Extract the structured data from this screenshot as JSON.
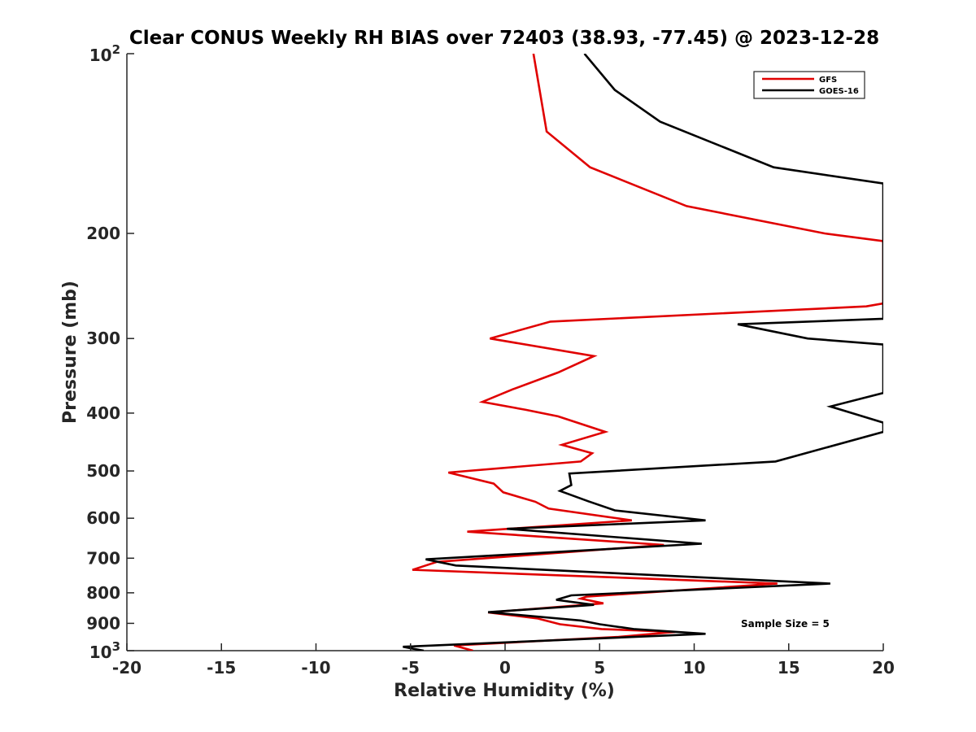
{
  "chart_data": {
    "type": "line",
    "title": "Clear CONUS Weekly RH BIAS over 72403 (38.93, -77.45) @ 2023-12-28",
    "xlabel": "Relative Humidity (%)",
    "ylabel": "Pressure (mb)",
    "xlim": [
      -20,
      20
    ],
    "ylim": [
      1000,
      100
    ],
    "y_scale": "log",
    "y_reversed": true,
    "grid": false,
    "legend_position": "top-right",
    "x_ticks": [
      -20,
      -15,
      -10,
      -5,
      0,
      5,
      10,
      15,
      20
    ],
    "x_tick_labels": [
      "-20",
      "-15",
      "-10",
      "-5",
      "0",
      "5",
      "10",
      "15",
      "20"
    ],
    "y_ticks": [
      100,
      200,
      300,
      400,
      500,
      600,
      700,
      800,
      900,
      1000
    ],
    "y_tick_labels": [
      "",
      "200",
      "300",
      "400",
      "500",
      "600",
      "700",
      "800",
      "900",
      ""
    ],
    "y_tick_power_labels": [
      {
        "value": 100,
        "base": "10",
        "exponent": "2"
      },
      {
        "value": 1000,
        "base": "10",
        "exponent": "3"
      }
    ],
    "annotation": "Sample Size = 5",
    "series": [
      {
        "name": "GFS",
        "color": "#e00000",
        "points": [
          [
            1.5,
            100
          ],
          [
            2.2,
            135
          ],
          [
            4.5,
            155
          ],
          [
            9.6,
            180
          ],
          [
            16.9,
            200
          ],
          [
            20.0,
            206
          ],
          [
            20.0,
            262
          ],
          [
            19.1,
            265
          ],
          [
            2.4,
            281
          ],
          [
            -0.8,
            300
          ],
          [
            4.7,
            321
          ],
          [
            2.8,
            342
          ],
          [
            0.4,
            365
          ],
          [
            -1.2,
            383
          ],
          [
            1.1,
            395
          ],
          [
            2.8,
            405
          ],
          [
            5.3,
            430
          ],
          [
            3.0,
            452
          ],
          [
            4.6,
            467
          ],
          [
            4.0,
            482
          ],
          [
            -3.0,
            503
          ],
          [
            -0.6,
            525
          ],
          [
            -0.1,
            543
          ],
          [
            1.6,
            563
          ],
          [
            2.3,
            578
          ],
          [
            6.7,
            605
          ],
          [
            -2.0,
            632
          ],
          [
            8.4,
            665
          ],
          [
            -3.6,
            710
          ],
          [
            -4.9,
            732
          ],
          [
            14.4,
            772
          ],
          [
            4.3,
            812
          ],
          [
            4.0,
            818
          ],
          [
            5.2,
            833
          ],
          [
            -0.9,
            863
          ],
          [
            1.7,
            883
          ],
          [
            2.9,
            903
          ],
          [
            5.1,
            920
          ],
          [
            9.0,
            930
          ],
          [
            6.0,
            948
          ],
          [
            -2.7,
            980
          ],
          [
            -1.7,
            1000
          ]
        ]
      },
      {
        "name": "GOES-16",
        "color": "#000000",
        "points": [
          [
            4.2,
            100
          ],
          [
            5.8,
            115
          ],
          [
            8.2,
            130
          ],
          [
            14.2,
            155
          ],
          [
            20.0,
            165
          ],
          [
            20.0,
            278
          ],
          [
            12.3,
            284
          ],
          [
            16.0,
            300
          ],
          [
            20.0,
            307
          ],
          [
            20.0,
            370
          ],
          [
            17.2,
            390
          ],
          [
            20.0,
            415
          ],
          [
            20.0,
            430
          ],
          [
            14.3,
            482
          ],
          [
            3.4,
            505
          ],
          [
            3.5,
            528
          ],
          [
            2.9,
            540
          ],
          [
            4.4,
            562
          ],
          [
            5.8,
            582
          ],
          [
            10.6,
            605
          ],
          [
            0.1,
            625
          ],
          [
            10.4,
            662
          ],
          [
            -4.2,
            703
          ],
          [
            -2.6,
            720
          ],
          [
            17.2,
            772
          ],
          [
            3.5,
            808
          ],
          [
            2.7,
            822
          ],
          [
            4.7,
            838
          ],
          [
            -0.9,
            862
          ],
          [
            4.0,
            890
          ],
          [
            5.0,
            903
          ],
          [
            6.8,
            920
          ],
          [
            10.6,
            937
          ],
          [
            -5.4,
            985
          ],
          [
            -4.3,
            1000
          ]
        ]
      }
    ]
  }
}
